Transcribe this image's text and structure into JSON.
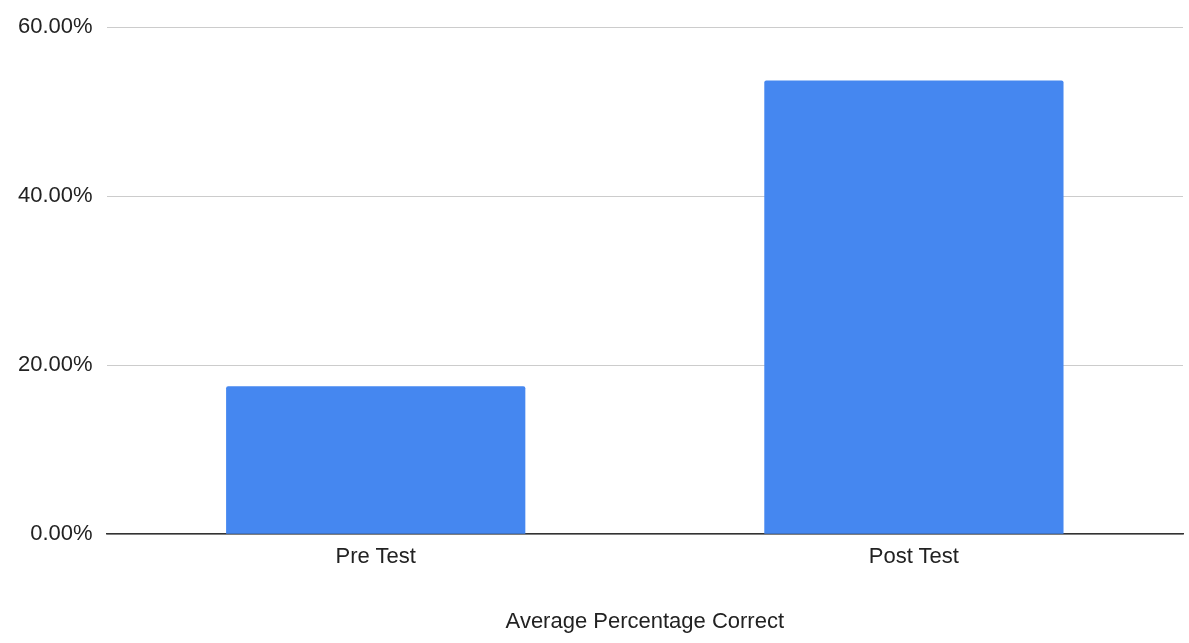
{
  "chart_data": {
    "type": "bar",
    "xlabel": "Average Percentage Correct",
    "categories": [
      "Pre Test",
      "Post Test"
    ],
    "values": [
      17.5,
      53.7
    ],
    "color": "#4587f0",
    "ylim": [
      0,
      60
    ],
    "yticks": [
      {
        "value": 0,
        "label": "0.00%"
      },
      {
        "value": 20,
        "label": "20.00%"
      },
      {
        "value": 40,
        "label": "40.00%"
      },
      {
        "value": 60,
        "label": "60.00%"
      }
    ],
    "grid": "y",
    "legend": false
  }
}
